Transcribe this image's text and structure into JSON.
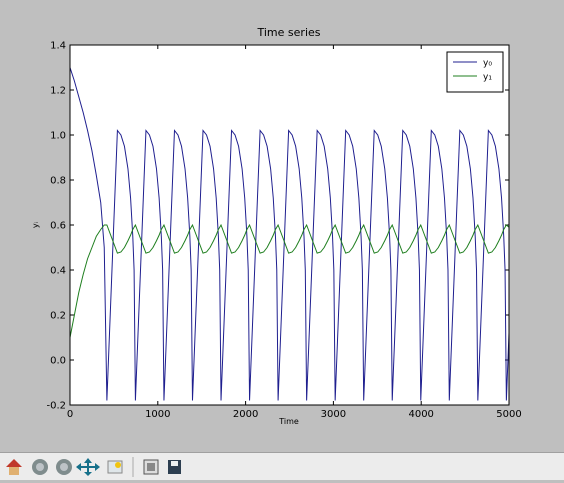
{
  "chart_data": {
    "type": "line",
    "title": "Time series",
    "xlabel": "Time",
    "ylabel": "yᵢ",
    "x": [
      0,
      50,
      100,
      150,
      200,
      250,
      300,
      350,
      390,
      420,
      540,
      580,
      620,
      660,
      690,
      715,
      730,
      745,
      865,
      905,
      945,
      985,
      1015,
      1040,
      1055,
      1070,
      1190,
      1230,
      1270,
      1310,
      1340,
      1365,
      1380,
      1395,
      1515,
      1555,
      1595,
      1635,
      1665,
      1690,
      1705,
      1720,
      1840,
      1880,
      1920,
      1960,
      1990,
      2015,
      2030,
      2045,
      2165,
      2205,
      2245,
      2285,
      2315,
      2340,
      2355,
      2370,
      2490,
      2530,
      2570,
      2610,
      2640,
      2665,
      2680,
      2695,
      2815,
      2855,
      2895,
      2935,
      2965,
      2990,
      3005,
      3020,
      3140,
      3180,
      3220,
      3260,
      3290,
      3315,
      3330,
      3345,
      3465,
      3505,
      3545,
      3585,
      3615,
      3640,
      3655,
      3670,
      3790,
      3830,
      3870,
      3910,
      3940,
      3965,
      3980,
      3995,
      4115,
      4155,
      4195,
      4235,
      4265,
      4290,
      4305,
      4320,
      4440,
      4480,
      4520,
      4560,
      4590,
      4615,
      4630,
      4645,
      4765,
      4805,
      4845,
      4885,
      4915,
      4940,
      4955,
      4970,
      5000
    ],
    "series": [
      {
        "name": "y₀",
        "color": "#1f1f8f",
        "values": [
          1.3,
          1.24,
          1.17,
          1.1,
          1.02,
          0.93,
          0.82,
          0.7,
          0.5,
          -0.18,
          1.02,
          1.0,
          0.95,
          0.85,
          0.72,
          0.55,
          0.4,
          -0.18,
          1.02,
          1.0,
          0.95,
          0.85,
          0.72,
          0.55,
          0.4,
          -0.18,
          1.02,
          1.0,
          0.95,
          0.85,
          0.72,
          0.55,
          0.4,
          -0.18,
          1.02,
          1.0,
          0.95,
          0.85,
          0.72,
          0.55,
          0.4,
          -0.18,
          1.02,
          1.0,
          0.95,
          0.85,
          0.72,
          0.55,
          0.4,
          -0.18,
          1.02,
          1.0,
          0.95,
          0.85,
          0.72,
          0.55,
          0.4,
          -0.18,
          1.02,
          1.0,
          0.95,
          0.85,
          0.72,
          0.55,
          0.4,
          -0.18,
          1.02,
          1.0,
          0.95,
          0.85,
          0.72,
          0.55,
          0.4,
          -0.18,
          1.02,
          1.0,
          0.95,
          0.85,
          0.72,
          0.55,
          0.4,
          -0.18,
          1.02,
          1.0,
          0.95,
          0.85,
          0.72,
          0.55,
          0.4,
          -0.18,
          1.02,
          1.0,
          0.95,
          0.85,
          0.72,
          0.55,
          0.4,
          -0.18,
          1.02,
          1.0,
          0.95,
          0.85,
          0.72,
          0.55,
          0.4,
          -0.18,
          1.02,
          1.0,
          0.95,
          0.85,
          0.72,
          0.55,
          0.4,
          -0.18,
          1.02,
          1.0,
          0.95,
          0.85,
          0.72,
          0.55,
          0.4,
          -0.18,
          0.12
        ]
      },
      {
        "name": "y₁",
        "color": "#1f7f1f",
        "values": [
          0.1,
          0.2,
          0.3,
          0.38,
          0.45,
          0.5,
          0.55,
          0.58,
          0.6,
          0.6,
          0.475,
          0.48,
          0.5,
          0.53,
          0.555,
          0.58,
          0.59,
          0.6,
          0.475,
          0.48,
          0.5,
          0.53,
          0.555,
          0.58,
          0.59,
          0.6,
          0.475,
          0.48,
          0.5,
          0.53,
          0.555,
          0.58,
          0.59,
          0.6,
          0.475,
          0.48,
          0.5,
          0.53,
          0.555,
          0.58,
          0.59,
          0.6,
          0.475,
          0.48,
          0.5,
          0.53,
          0.555,
          0.58,
          0.59,
          0.6,
          0.475,
          0.48,
          0.5,
          0.53,
          0.555,
          0.58,
          0.59,
          0.6,
          0.475,
          0.48,
          0.5,
          0.53,
          0.555,
          0.58,
          0.59,
          0.6,
          0.475,
          0.48,
          0.5,
          0.53,
          0.555,
          0.58,
          0.59,
          0.6,
          0.475,
          0.48,
          0.5,
          0.53,
          0.555,
          0.58,
          0.59,
          0.6,
          0.475,
          0.48,
          0.5,
          0.53,
          0.555,
          0.58,
          0.59,
          0.6,
          0.475,
          0.48,
          0.5,
          0.53,
          0.555,
          0.58,
          0.59,
          0.6,
          0.475,
          0.48,
          0.5,
          0.53,
          0.555,
          0.58,
          0.59,
          0.6,
          0.475,
          0.48,
          0.5,
          0.53,
          0.555,
          0.58,
          0.59,
          0.6,
          0.475,
          0.48,
          0.5,
          0.53,
          0.555,
          0.58,
          0.59,
          0.6,
          0.59
        ]
      }
    ],
    "xlim": [
      0,
      5000
    ],
    "xticks": [
      0,
      1000,
      2000,
      3000,
      4000,
      5000
    ],
    "ylim": [
      -0.2,
      1.4
    ],
    "yticks": [
      -0.2,
      {
        "value": 0,
        "label": "0.0"
      },
      0.2,
      0.4,
      0.6,
      0.8,
      {
        "value": 1,
        "label": "1.0"
      },
      1.2,
      1.4
    ],
    "legend": "upper right"
  }
}
